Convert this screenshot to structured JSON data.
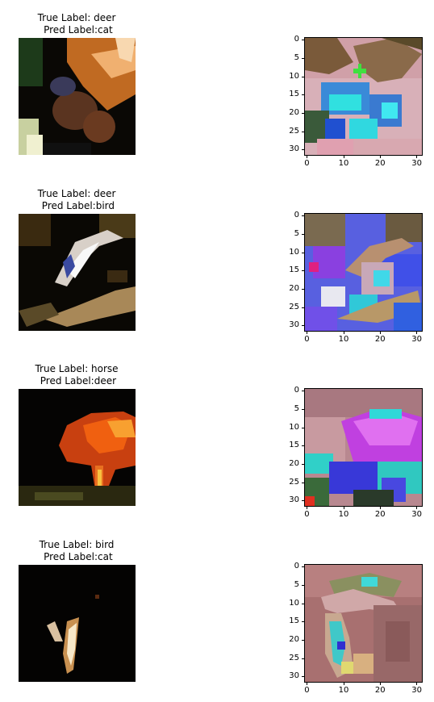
{
  "panels": [
    {
      "true_label": "True Label: deer",
      "pred_label": " Pred Label:cat"
    },
    {
      "true_label": "True Label: deer",
      "pred_label": " Pred Label:bird"
    },
    {
      "true_label": "True Label: horse",
      "pred_label": " Pred Label:deer"
    },
    {
      "true_label": "True Label: bird",
      "pred_label": " Pred Label:cat"
    }
  ],
  "axes": {
    "y_ticks": [
      "0",
      "5",
      "10",
      "15",
      "20",
      "25",
      "30"
    ],
    "x_ticks": [
      "0",
      "10",
      "20",
      "30"
    ]
  }
}
